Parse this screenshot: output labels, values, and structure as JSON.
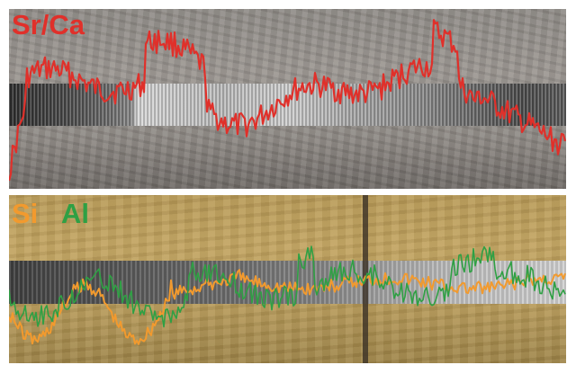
{
  "labels": {
    "top": "Sr/Ca",
    "bottom_a": "Si",
    "bottom_b": "Al"
  },
  "colors": {
    "srca": "#e0302a",
    "si": "#f29a2e",
    "al": "#2fa044"
  }
}
